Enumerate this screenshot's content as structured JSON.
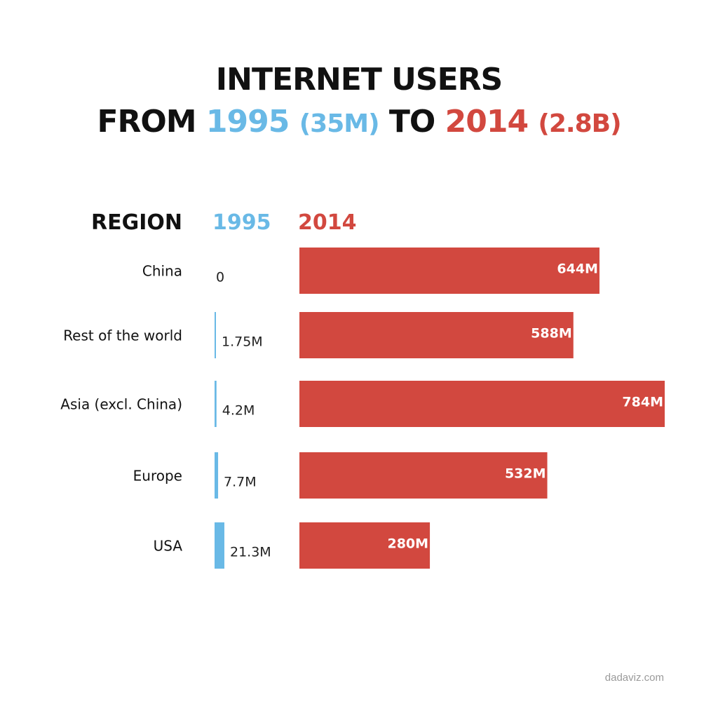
{
  "title": {
    "line1": "INTERNET USERS",
    "from_word": "FROM",
    "year_a": "1995",
    "total_a": "(35M)",
    "to_word": "TO",
    "year_b": "2014",
    "total_b": "(2.8B)"
  },
  "headers": {
    "region": "REGION",
    "col_1995": "1995",
    "col_2014": "2014"
  },
  "chart_data": {
    "type": "bar",
    "categories": [
      "China",
      "Rest of the world",
      "Asia (excl. China)",
      "Europe",
      "USA"
    ],
    "series": [
      {
        "name": "1995",
        "values": [
          0,
          1.75,
          4.2,
          7.7,
          21.3
        ],
        "labels": [
          "0",
          "1.75M",
          "4.2M",
          "7.7M",
          "21.3M"
        ],
        "color": "#69b9e6"
      },
      {
        "name": "2014",
        "values": [
          644,
          588,
          784,
          532,
          280
        ],
        "labels": [
          "644M",
          "588M",
          "784M",
          "532M",
          "280M"
        ],
        "color": "#d2483f"
      }
    ],
    "units": "M",
    "legend": "none",
    "grid": false
  },
  "watermark": "dadaviz.com"
}
